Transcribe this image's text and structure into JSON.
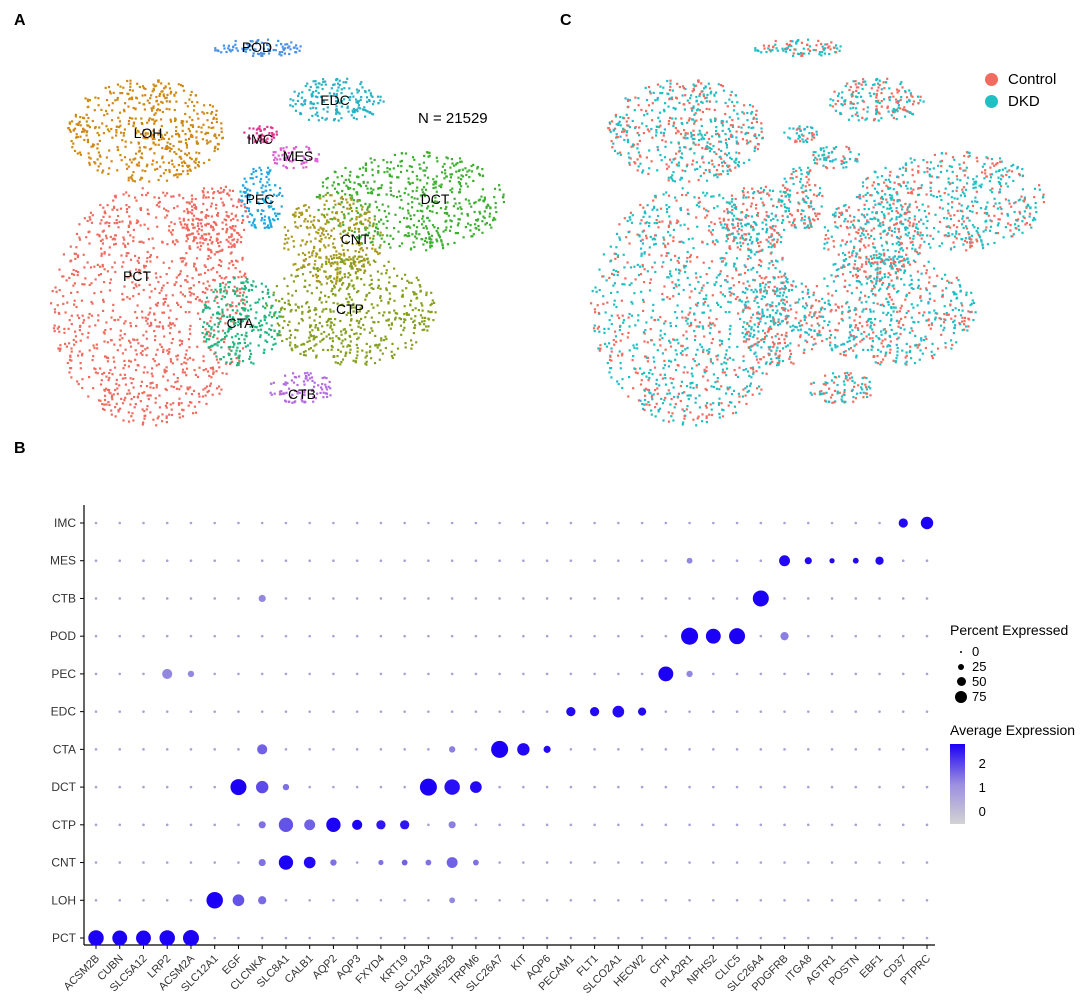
{
  "panels": {
    "a": "A",
    "b": "B",
    "c": "C"
  },
  "panel_a": {
    "n_label": "N = 21529",
    "clusters": [
      {
        "name": "POD",
        "color": "#4a90e2"
      },
      {
        "name": "EDC",
        "color": "#26b3c4"
      },
      {
        "name": "LOH",
        "color": "#d08a14"
      },
      {
        "name": "IMC",
        "color": "#e0338c"
      },
      {
        "name": "MES",
        "color": "#de5cd6"
      },
      {
        "name": "PEC",
        "color": "#1ea8e0"
      },
      {
        "name": "DCT",
        "color": "#3cb02e"
      },
      {
        "name": "CNT",
        "color": "#a89a1a"
      },
      {
        "name": "PCT",
        "color": "#ef6b5f"
      },
      {
        "name": "CTP",
        "color": "#86a01e"
      },
      {
        "name": "CTA",
        "color": "#1fb77f"
      },
      {
        "name": "CTB",
        "color": "#b46ae0"
      }
    ]
  },
  "panel_c": {
    "legend": [
      {
        "label": "Control",
        "color": "#f26b5f"
      },
      {
        "label": "DKD",
        "color": "#1fbfc4"
      }
    ]
  },
  "chart_data": {
    "type": "dot-plot",
    "genes": [
      "ACSM2B",
      "CUBN",
      "SLC5A12",
      "LRP2",
      "ACSM2A",
      "SLC12A1",
      "EGF",
      "CLCNKA",
      "SLC8A1",
      "CALB1",
      "AQP2",
      "AQP3",
      "FXYD4",
      "KRT19",
      "SLC12A3",
      "TMEM52B",
      "TRPM6",
      "SLC26A7",
      "KIT",
      "AQP6",
      "PECAM1",
      "FLT1",
      "SLCO2A1",
      "HECW2",
      "CFH",
      "PLA2R1",
      "NPHS2",
      "CLIC5",
      "SLC26A4",
      "PDGFRB",
      "ITGA8",
      "AGTR1",
      "POSTN",
      "EBF1",
      "CD37",
      "PTPRC"
    ],
    "clusters": [
      "IMC",
      "MES",
      "CTB",
      "POD",
      "PEC",
      "EDC",
      "CTA",
      "DCT",
      "CTP",
      "CNT",
      "LOH",
      "PCT"
    ],
    "points": [
      {
        "cluster": "PCT",
        "gene": "ACSM2B",
        "pct": 70,
        "avg": 2.3
      },
      {
        "cluster": "PCT",
        "gene": "CUBN",
        "pct": 65,
        "avg": 2.3
      },
      {
        "cluster": "PCT",
        "gene": "SLC5A12",
        "pct": 65,
        "avg": 2.3
      },
      {
        "cluster": "PCT",
        "gene": "LRP2",
        "pct": 70,
        "avg": 2.3
      },
      {
        "cluster": "PCT",
        "gene": "ACSM2A",
        "pct": 75,
        "avg": 2.3
      },
      {
        "cluster": "LOH",
        "gene": "SLC12A1",
        "pct": 80,
        "avg": 2.3
      },
      {
        "cluster": "LOH",
        "gene": "EGF",
        "pct": 40,
        "avg": 1.2
      },
      {
        "cluster": "LOH",
        "gene": "CLCNKA",
        "pct": 20,
        "avg": 0.9
      },
      {
        "cluster": "LOH",
        "gene": "TMEM52B",
        "pct": 10,
        "avg": 0.5
      },
      {
        "cluster": "DCT",
        "gene": "EGF",
        "pct": 75,
        "avg": 2.3
      },
      {
        "cluster": "DCT",
        "gene": "CLCNKA",
        "pct": 45,
        "avg": 1.3
      },
      {
        "cluster": "DCT",
        "gene": "SLC8A1",
        "pct": 12,
        "avg": 0.8
      },
      {
        "cluster": "DCT",
        "gene": "SLC12A3",
        "pct": 85,
        "avg": 2.3
      },
      {
        "cluster": "DCT",
        "gene": "TMEM52B",
        "pct": 70,
        "avg": 2.1
      },
      {
        "cluster": "DCT",
        "gene": "TRPM6",
        "pct": 40,
        "avg": 2.2
      },
      {
        "cluster": "CTA",
        "gene": "CLCNKA",
        "pct": 30,
        "avg": 1.0
      },
      {
        "cluster": "CTA",
        "gene": "TMEM52B",
        "pct": 12,
        "avg": 0.6
      },
      {
        "cluster": "CTA",
        "gene": "SLC26A7",
        "pct": 85,
        "avg": 2.3
      },
      {
        "cluster": "CTA",
        "gene": "KIT",
        "pct": 45,
        "avg": 2.2
      },
      {
        "cluster": "CTA",
        "gene": "AQP6",
        "pct": 15,
        "avg": 2.2
      },
      {
        "cluster": "CNT",
        "gene": "CLCNKA",
        "pct": 15,
        "avg": 0.8
      },
      {
        "cluster": "CNT",
        "gene": "SLC8A1",
        "pct": 60,
        "avg": 2.3
      },
      {
        "cluster": "CNT",
        "gene": "CALB1",
        "pct": 40,
        "avg": 2.2
      },
      {
        "cluster": "CNT",
        "gene": "AQP2",
        "pct": 12,
        "avg": 0.8
      },
      {
        "cluster": "CNT",
        "gene": "FXYD4",
        "pct": 8,
        "avg": 0.8
      },
      {
        "cluster": "CNT",
        "gene": "KRT19",
        "pct": 10,
        "avg": 1.0
      },
      {
        "cluster": "CNT",
        "gene": "SLC12A3",
        "pct": 10,
        "avg": 0.8
      },
      {
        "cluster": "CNT",
        "gene": "TMEM52B",
        "pct": 35,
        "avg": 1.0
      },
      {
        "cluster": "CNT",
        "gene": "TRPM6",
        "pct": 10,
        "avg": 0.8
      },
      {
        "cluster": "CTP",
        "gene": "CLCNKA",
        "pct": 15,
        "avg": 0.8
      },
      {
        "cluster": "CTP",
        "gene": "SLC8A1",
        "pct": 60,
        "avg": 1.2
      },
      {
        "cluster": "CTP",
        "gene": "CALB1",
        "pct": 35,
        "avg": 1.0
      },
      {
        "cluster": "CTP",
        "gene": "AQP2",
        "pct": 60,
        "avg": 2.3
      },
      {
        "cluster": "CTP",
        "gene": "AQP3",
        "pct": 30,
        "avg": 2.3
      },
      {
        "cluster": "CTP",
        "gene": "FXYD4",
        "pct": 25,
        "avg": 2.0
      },
      {
        "cluster": "CTP",
        "gene": "KRT19",
        "pct": 25,
        "avg": 2.0
      },
      {
        "cluster": "CTP",
        "gene": "TMEM52B",
        "pct": 15,
        "avg": 0.6
      },
      {
        "cluster": "EDC",
        "gene": "PECAM1",
        "pct": 25,
        "avg": 2.2
      },
      {
        "cluster": "EDC",
        "gene": "FLT1",
        "pct": 25,
        "avg": 2.2
      },
      {
        "cluster": "EDC",
        "gene": "SLCO2A1",
        "pct": 40,
        "avg": 2.2
      },
      {
        "cluster": "EDC",
        "gene": "HECW2",
        "pct": 20,
        "avg": 2.2
      },
      {
        "cluster": "PEC",
        "gene": "LRP2",
        "pct": 30,
        "avg": 0.5
      },
      {
        "cluster": "PEC",
        "gene": "ACSM2A",
        "pct": 12,
        "avg": 0.5
      },
      {
        "cluster": "PEC",
        "gene": "CFH",
        "pct": 65,
        "avg": 2.3
      },
      {
        "cluster": "PEC",
        "gene": "PLA2R1",
        "pct": 12,
        "avg": 0.5
      },
      {
        "cluster": "POD",
        "gene": "PLA2R1",
        "pct": 85,
        "avg": 2.3
      },
      {
        "cluster": "POD",
        "gene": "NPHS2",
        "pct": 65,
        "avg": 2.3
      },
      {
        "cluster": "POD",
        "gene": "CLIC5",
        "pct": 75,
        "avg": 2.3
      },
      {
        "cluster": "POD",
        "gene": "PDGFRB",
        "pct": 20,
        "avg": 0.6
      },
      {
        "cluster": "CTB",
        "gene": "CLCNKA",
        "pct": 15,
        "avg": 0.5
      },
      {
        "cluster": "CTB",
        "gene": "SLC26A4",
        "pct": 75,
        "avg": 2.3
      },
      {
        "cluster": "MES",
        "gene": "PDGFRB",
        "pct": 35,
        "avg": 2.2
      },
      {
        "cluster": "MES",
        "gene": "ITGA8",
        "pct": 15,
        "avg": 2.2
      },
      {
        "cluster": "MES",
        "gene": "AGTR1",
        "pct": 8,
        "avg": 2.2
      },
      {
        "cluster": "MES",
        "gene": "POSTN",
        "pct": 10,
        "avg": 2.2
      },
      {
        "cluster": "MES",
        "gene": "EBF1",
        "pct": 20,
        "avg": 2.2
      },
      {
        "cluster": "MES",
        "gene": "PLA2R1",
        "pct": 10,
        "avg": 0.5
      },
      {
        "cluster": "IMC",
        "gene": "CD37",
        "pct": 25,
        "avg": 2.2
      },
      {
        "cluster": "IMC",
        "gene": "PTPRC",
        "pct": 45,
        "avg": 2.3
      }
    ],
    "size_legend_title": "Percent Expressed",
    "size_legend": [
      "0",
      "25",
      "50",
      "75"
    ],
    "color_legend_title": "Average Expression",
    "color_legend": [
      "2",
      "1",
      "0"
    ],
    "color_range": [
      -0.5,
      2.3
    ]
  }
}
